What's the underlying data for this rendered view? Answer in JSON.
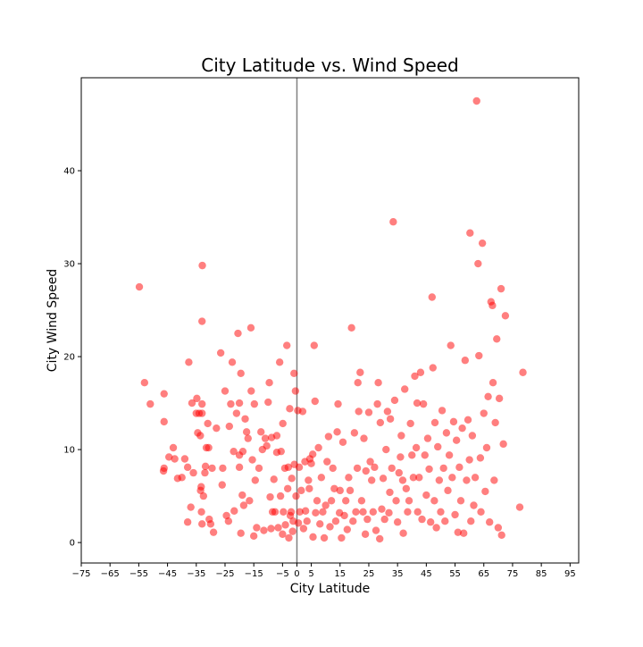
{
  "chart_data": {
    "type": "scatter",
    "title": "City Latitude vs. Wind Speed",
    "xlabel": "City Latitude",
    "ylabel": "City Wind Speed",
    "xlim": [
      -75,
      98
    ],
    "ylim": [
      -2.2,
      50
    ],
    "xticks": [
      -75,
      -65,
      -55,
      -45,
      -35,
      -25,
      -15,
      -5,
      0,
      5,
      15,
      25,
      35,
      45,
      55,
      65,
      75,
      85,
      95
    ],
    "yticks": [
      0,
      10,
      20,
      30,
      40
    ],
    "vline_x": 0,
    "grid": false,
    "marker_color": "#ff0000",
    "marker_alpha": 0.5,
    "series": [
      {
        "points": [
          [
            -54.8,
            27.5
          ],
          [
            -53,
            17.2
          ],
          [
            -51,
            14.9
          ],
          [
            -46.2,
            16
          ],
          [
            -46.2,
            13
          ],
          [
            -46.4,
            7.7
          ],
          [
            -46.2,
            8
          ],
          [
            -44.5,
            9.2
          ],
          [
            -43,
            10.2
          ],
          [
            -42.5,
            9
          ],
          [
            -41.5,
            6.9
          ],
          [
            -40,
            7
          ],
          [
            -39,
            9
          ],
          [
            -38,
            8.1
          ],
          [
            -38,
            2.2
          ],
          [
            -37.6,
            19.4
          ],
          [
            -36.9,
            3.8
          ],
          [
            -36.5,
            15
          ],
          [
            -36,
            7.5
          ],
          [
            -35,
            13.9
          ],
          [
            -34.8,
            15.5
          ],
          [
            -34.5,
            11.8
          ],
          [
            -34,
            13.9
          ],
          [
            -33.6,
            11.5
          ],
          [
            -33.3,
            6
          ],
          [
            -32.9,
            29.8
          ],
          [
            -33,
            23.8
          ],
          [
            -33.2,
            3.3
          ],
          [
            -33,
            13.9
          ],
          [
            -33.5,
            5.6
          ],
          [
            -33,
            2
          ],
          [
            -33,
            14.9
          ],
          [
            -32.5,
            5
          ],
          [
            -32,
            7.5
          ],
          [
            -31.8,
            8.2
          ],
          [
            -31.5,
            10.2
          ],
          [
            -31,
            12.8
          ],
          [
            -30.7,
            10.2
          ],
          [
            -30.5,
            2.5
          ],
          [
            -30,
            2
          ],
          [
            -29.5,
            8
          ],
          [
            -29,
            1.1
          ],
          [
            -28,
            12.3
          ],
          [
            -26.5,
            20.4
          ],
          [
            -26,
            6.2
          ],
          [
            -25.8,
            8
          ],
          [
            -25,
            16.3
          ],
          [
            -24.5,
            2.9
          ],
          [
            -23.8,
            2.3
          ],
          [
            -23.5,
            12.5
          ],
          [
            -23,
            14.9
          ],
          [
            -22.5,
            19.4
          ],
          [
            -22,
            9.8
          ],
          [
            -21.8,
            3.4
          ],
          [
            -21,
            13.9
          ],
          [
            -20.5,
            22.5
          ],
          [
            -20,
            9.4
          ],
          [
            -20,
            15
          ],
          [
            -20,
            8.1
          ],
          [
            -19.5,
            18.2
          ],
          [
            -19.5,
            1
          ],
          [
            -19,
            5.1
          ],
          [
            -18.8,
            9.8
          ],
          [
            -18.5,
            4
          ],
          [
            -18,
            13.3
          ],
          [
            -17.5,
            11.9
          ],
          [
            -17,
            11.2
          ],
          [
            -16.5,
            4.5
          ],
          [
            -16,
            23.1
          ],
          [
            -15.9,
            16.3
          ],
          [
            -15.5,
            8.9
          ],
          [
            -15,
            0.7
          ],
          [
            -14.8,
            14.9
          ],
          [
            -14.5,
            6.7
          ],
          [
            -14,
            1.6
          ],
          [
            -13.2,
            8
          ],
          [
            -12.5,
            11.9
          ],
          [
            -12,
            10
          ],
          [
            -11.5,
            1.3
          ],
          [
            -11,
            11.2
          ],
          [
            -10.5,
            10.4
          ],
          [
            -10,
            15.1
          ],
          [
            -9.6,
            17.2
          ],
          [
            -9.3,
            4.9
          ],
          [
            -9,
            1.5
          ],
          [
            -8.8,
            11.3
          ],
          [
            -8.5,
            3.3
          ],
          [
            -8,
            6.8
          ],
          [
            -7.6,
            3.3
          ],
          [
            -7,
            11.5
          ],
          [
            -7,
            9.7
          ],
          [
            -6.5,
            1.6
          ],
          [
            -6,
            19.4
          ],
          [
            -5.7,
            5
          ],
          [
            -5.5,
            9.8
          ],
          [
            -5,
            0.9
          ],
          [
            -4.9,
            12.8
          ],
          [
            -4.7,
            3.3
          ],
          [
            -4.2,
            8
          ],
          [
            -4,
            1.9
          ],
          [
            -3.5,
            21.2
          ],
          [
            -3.2,
            5.8
          ],
          [
            -3,
            8.1
          ],
          [
            -2.8,
            0.5
          ],
          [
            -2.5,
            14.4
          ],
          [
            -2.3,
            2.9
          ],
          [
            -2,
            3.3
          ],
          [
            -1.8,
            6.9
          ],
          [
            -1.5,
            1.2
          ],
          [
            -1.3,
            2.3
          ],
          [
            -1,
            18.2
          ],
          [
            -0.9,
            8.4
          ],
          [
            -0.5,
            16.3
          ],
          [
            -0.3,
            5
          ],
          [
            0.3,
            14.2
          ],
          [
            0.5,
            2.1
          ],
          [
            0.8,
            8.1
          ],
          [
            1,
            3.3
          ],
          [
            1.5,
            5.6
          ],
          [
            2,
            14.1
          ],
          [
            2.3,
            1.5
          ],
          [
            2.8,
            8.7
          ],
          [
            3,
            3.4
          ],
          [
            3.5,
            2.3
          ],
          [
            4,
            6.7
          ],
          [
            4.3,
            5.8
          ],
          [
            4.5,
            9
          ],
          [
            5,
            8.5
          ],
          [
            5.5,
            9.5
          ],
          [
            5.6,
            0.6
          ],
          [
            6,
            21.2
          ],
          [
            6.3,
            15.2
          ],
          [
            6.5,
            3.2
          ],
          [
            7,
            4.5
          ],
          [
            7.5,
            10.2
          ],
          [
            8,
            2
          ],
          [
            8.5,
            7
          ],
          [
            9,
            3.3
          ],
          [
            9.5,
            0.5
          ],
          [
            10,
            4
          ],
          [
            10.5,
            8.7
          ],
          [
            11,
            11.4
          ],
          [
            11.5,
            1.7
          ],
          [
            12,
            4.5
          ],
          [
            12.5,
            8
          ],
          [
            13,
            5.8
          ],
          [
            13.5,
            2.3
          ],
          [
            14,
            11.9
          ],
          [
            14.3,
            14.9
          ],
          [
            14.8,
            3.2
          ],
          [
            15,
            5.6
          ],
          [
            15.5,
            0.5
          ],
          [
            16,
            10.8
          ],
          [
            16.5,
            2.9
          ],
          [
            17,
            4.5
          ],
          [
            17.5,
            1.4
          ],
          [
            18,
            7
          ],
          [
            18.5,
            5.6
          ],
          [
            19,
            23.1
          ],
          [
            19.5,
            2.3
          ],
          [
            20,
            11.8
          ],
          [
            20.5,
            3.3
          ],
          [
            21,
            8
          ],
          [
            21.2,
            17.2
          ],
          [
            21.5,
            14.1
          ],
          [
            22,
            18.3
          ],
          [
            22.5,
            4.5
          ],
          [
            23,
            3.3
          ],
          [
            23.3,
            11.2
          ],
          [
            23.8,
            0.9
          ],
          [
            24,
            7.7
          ],
          [
            24.5,
            2.5
          ],
          [
            25,
            14
          ],
          [
            25.5,
            8.7
          ],
          [
            26,
            6.7
          ],
          [
            26.5,
            3.3
          ],
          [
            27,
            8.1
          ],
          [
            27.5,
            1.3
          ],
          [
            28,
            14.9
          ],
          [
            28.3,
            17.2
          ],
          [
            28.8,
            0.4
          ],
          [
            29,
            12.9
          ],
          [
            29.5,
            3.6
          ],
          [
            30,
            6.9
          ],
          [
            30.5,
            2.5
          ],
          [
            31,
            10
          ],
          [
            31.5,
            14.1
          ],
          [
            32,
            3.2
          ],
          [
            32.3,
            5.4
          ],
          [
            32.5,
            13.3
          ],
          [
            33,
            8
          ],
          [
            33.5,
            34.5
          ],
          [
            34,
            15.3
          ],
          [
            34.5,
            4.5
          ],
          [
            35,
            2.2
          ],
          [
            35.5,
            7.5
          ],
          [
            36,
            9.2
          ],
          [
            36.3,
            11.5
          ],
          [
            36.8,
            6.7
          ],
          [
            37,
            1
          ],
          [
            37.5,
            16.5
          ],
          [
            38,
            5.8
          ],
          [
            38.5,
            3.3
          ],
          [
            39,
            4.5
          ],
          [
            39.5,
            12.8
          ],
          [
            40,
            9.4
          ],
          [
            40.5,
            7
          ],
          [
            41,
            17.9
          ],
          [
            41.5,
            10.2
          ],
          [
            41.8,
            15
          ],
          [
            42,
            3.3
          ],
          [
            42.5,
            7
          ],
          [
            43,
            18.3
          ],
          [
            43.5,
            2.5
          ],
          [
            44,
            14.9
          ],
          [
            44.5,
            9.4
          ],
          [
            45,
            5.1
          ],
          [
            45.5,
            11.2
          ],
          [
            46,
            7.9
          ],
          [
            46.5,
            2.2
          ],
          [
            47,
            26.4
          ],
          [
            47.3,
            18.8
          ],
          [
            47.8,
            4.5
          ],
          [
            48,
            12.9
          ],
          [
            48.5,
            1.6
          ],
          [
            49,
            10.3
          ],
          [
            49.5,
            6.7
          ],
          [
            50,
            3.3
          ],
          [
            50.5,
            14.2
          ],
          [
            51,
            8
          ],
          [
            51.5,
            2.3
          ],
          [
            52,
            11.8
          ],
          [
            52.5,
            5.6
          ],
          [
            53,
            9.4
          ],
          [
            53.5,
            21.2
          ],
          [
            54,
            7
          ],
          [
            54.5,
            13
          ],
          [
            55,
            3
          ],
          [
            55.5,
            11
          ],
          [
            56,
            1.1
          ],
          [
            56.5,
            8.1
          ],
          [
            57,
            4.5
          ],
          [
            57.5,
            12.3
          ],
          [
            58,
            1
          ],
          [
            58.5,
            19.6
          ],
          [
            59,
            6.7
          ],
          [
            59.5,
            13.2
          ],
          [
            60,
            8.9
          ],
          [
            60.2,
            33.3
          ],
          [
            60.5,
            2.3
          ],
          [
            61,
            11.5
          ],
          [
            61.5,
            4
          ],
          [
            62,
            7
          ],
          [
            62.5,
            47.5
          ],
          [
            63,
            30
          ],
          [
            63.3,
            20.1
          ],
          [
            63.8,
            9.1
          ],
          [
            64,
            3.3
          ],
          [
            64.5,
            32.2
          ],
          [
            65,
            13.9
          ],
          [
            65.5,
            5.5
          ],
          [
            66,
            10.2
          ],
          [
            66.5,
            15.7
          ],
          [
            67,
            2.2
          ],
          [
            67.5,
            25.9
          ],
          [
            68,
            25.5
          ],
          [
            68.2,
            17.2
          ],
          [
            68.6,
            6.7
          ],
          [
            69,
            12.9
          ],
          [
            69.5,
            21.9
          ],
          [
            70,
            1.6
          ],
          [
            70.4,
            15.5
          ],
          [
            71,
            27.3
          ],
          [
            71.2,
            0.8
          ],
          [
            71.8,
            10.6
          ],
          [
            72.5,
            24.4
          ],
          [
            77.5,
            3.8
          ],
          [
            78.6,
            18.3
          ]
        ]
      }
    ]
  }
}
